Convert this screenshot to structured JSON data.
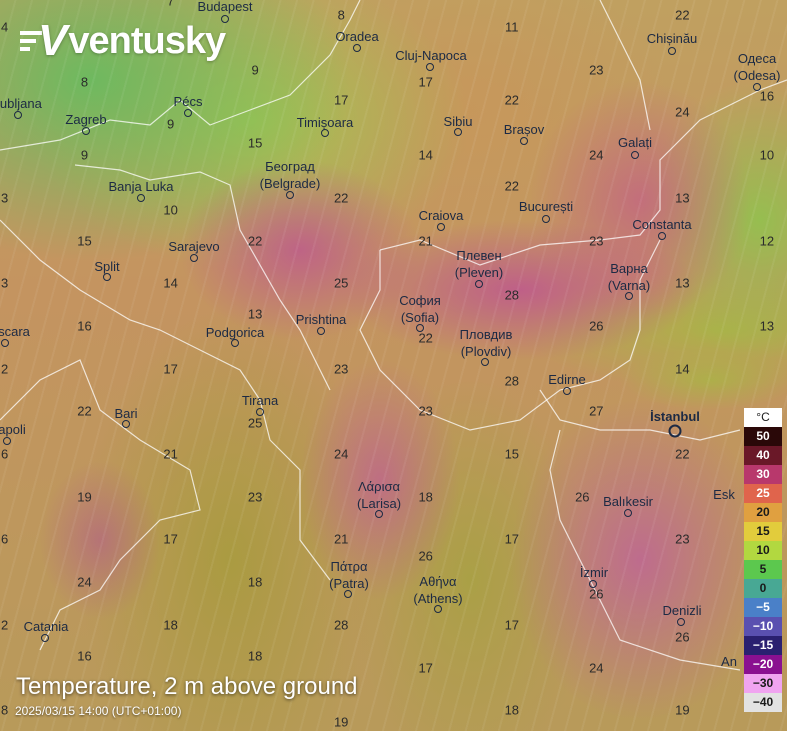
{
  "app": {
    "logo_text": "ventusky"
  },
  "layer": {
    "title": "Temperature, 2 m above ground",
    "timestamp": "2025/03/15 14:00 (UTC+01:00)"
  },
  "cities": [
    {
      "name": "Budapest"
    },
    {
      "name": "Oradea"
    },
    {
      "name": "Cluj-Napoca"
    },
    {
      "name": "Chișinău"
    },
    {
      "name": "Одеса",
      "alt": "(Odesa)"
    },
    {
      "name": "ljubljana"
    },
    {
      "name": "Zagreb"
    },
    {
      "name": "Pécs"
    },
    {
      "name": "Timișoara"
    },
    {
      "name": "Sibiu"
    },
    {
      "name": "Brașov"
    },
    {
      "name": "Galați"
    },
    {
      "name": "Београд",
      "alt": "(Belgrade)"
    },
    {
      "name": "Banja Luka"
    },
    {
      "name": "Craiova"
    },
    {
      "name": "București"
    },
    {
      "name": "Constanta"
    },
    {
      "name": "Sarajevo"
    },
    {
      "name": "Split"
    },
    {
      "name": "Плевен",
      "alt": "(Pleven)"
    },
    {
      "name": "Варна",
      "alt": "(Varna)"
    },
    {
      "name": "София",
      "alt": "(Sofia)"
    },
    {
      "name": "Пловдив",
      "alt": "(Plovdiv)"
    },
    {
      "name": "Podgorica"
    },
    {
      "name": "Prishtina"
    },
    {
      "name": "scara"
    },
    {
      "name": "Edirne"
    },
    {
      "name": "İstanbul"
    },
    {
      "name": "Tirana"
    },
    {
      "name": "Bari"
    },
    {
      "name": "apoli"
    },
    {
      "name": "Λάρισα",
      "alt": "(Larisa)"
    },
    {
      "name": "Balıkesir"
    },
    {
      "name": "Esk"
    },
    {
      "name": "Πάτρα",
      "alt": "(Patra)"
    },
    {
      "name": "Αθήνα",
      "alt": "(Athens)"
    },
    {
      "name": "İzmir"
    },
    {
      "name": "Denizli"
    },
    {
      "name": "Catania"
    },
    {
      "name": "An"
    }
  ],
  "temperature_grid": [
    [
      4,
      7,
      8,
      11,
      22
    ],
    [
      8,
      9,
      17,
      23,
      16
    ],
    [
      null,
      9,
      17,
      22,
      24
    ],
    [
      9,
      15,
      14,
      24,
      10
    ],
    [
      3,
      10,
      22,
      22,
      13
    ],
    [
      15,
      22,
      21,
      23,
      12
    ],
    [
      3,
      14,
      25,
      28,
      13
    ],
    [
      16,
      13,
      22,
      26,
      13
    ],
    [
      2,
      17,
      23,
      28,
      14
    ],
    [
      22,
      25,
      23,
      27,
      null
    ],
    [
      6,
      21,
      24,
      15,
      22
    ],
    [
      19,
      23,
      18,
      26,
      null
    ],
    [
      6,
      17,
      21,
      17,
      23
    ],
    [
      24,
      18,
      26,
      26,
      null
    ],
    [
      2,
      18,
      28,
      17,
      26
    ],
    [
      16,
      18,
      17,
      24,
      null
    ],
    [
      8,
      null,
      19,
      18,
      19
    ]
  ],
  "legend": {
    "unit": "°C",
    "stops": [
      {
        "label": "50",
        "color": "#2a0808",
        "text": "#ffffff"
      },
      {
        "label": "40",
        "color": "#6a1828",
        "text": "#ffffff"
      },
      {
        "label": "30",
        "color": "#b8386c",
        "text": "#ffffff"
      },
      {
        "label": "25",
        "color": "#e0644c",
        "text": "#ffffff"
      },
      {
        "label": "20",
        "color": "#e0a040",
        "text": "#1a1a1a"
      },
      {
        "label": "15",
        "color": "#e2cc3c",
        "text": "#1a1a1a"
      },
      {
        "label": "10",
        "color": "#b2d840",
        "text": "#1a1a1a"
      },
      {
        "label": "5",
        "color": "#5cc84e",
        "text": "#1a1a1a"
      },
      {
        "label": "0",
        "color": "#48a894",
        "text": "#1a1a1a"
      },
      {
        "label": "−5",
        "color": "#4a80c8",
        "text": "#ffffff"
      },
      {
        "label": "−10",
        "color": "#5a50b0",
        "text": "#ffffff"
      },
      {
        "label": "−15",
        "color": "#2a2070",
        "text": "#ffffff"
      },
      {
        "label": "−20",
        "color": "#8a1090",
        "text": "#ffffff"
      },
      {
        "label": "−30",
        "color": "#f0a4f0",
        "text": "#1a1a1a"
      },
      {
        "label": "−40",
        "color": "#e2e2e2",
        "text": "#1a1a1a"
      }
    ]
  }
}
